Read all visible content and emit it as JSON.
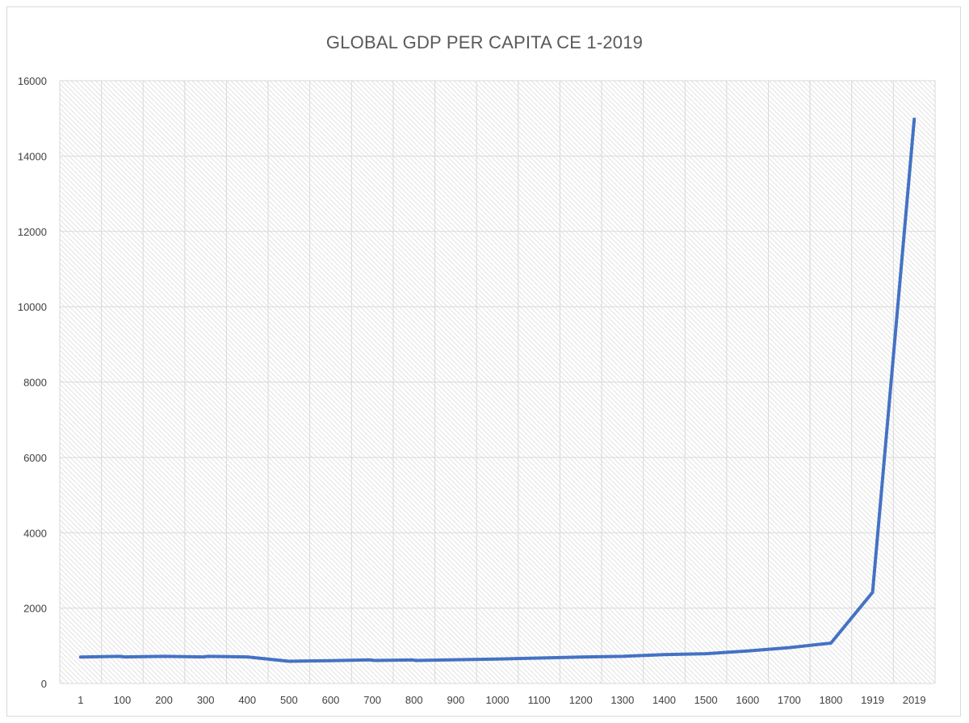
{
  "chart_data": {
    "type": "line",
    "title": "GLOBAL GDP PER CAPITA CE 1-2019",
    "xlabel": "",
    "ylabel": "",
    "categories": [
      "1",
      "100",
      "200",
      "300",
      "400",
      "500",
      "600",
      "700",
      "800",
      "900",
      "1000",
      "1100",
      "1200",
      "1300",
      "1400",
      "1500",
      "1600",
      "1700",
      "1800",
      "1919",
      "2019"
    ],
    "series": [
      {
        "values": [
          [
            0.0,
            700
          ],
          [
            0.95,
            720
          ],
          [
            1.05,
            705
          ],
          [
            2.0,
            720
          ],
          [
            2.95,
            705
          ],
          [
            3.05,
            720
          ],
          [
            4.0,
            705
          ],
          [
            5.0,
            590
          ],
          [
            6.0,
            605
          ],
          [
            6.95,
            625
          ],
          [
            7.05,
            610
          ],
          [
            7.95,
            625
          ],
          [
            8.05,
            610
          ],
          [
            9.0,
            630
          ],
          [
            10.0,
            650
          ],
          [
            11.0,
            675
          ],
          [
            12.0,
            700
          ],
          [
            13.0,
            720
          ],
          [
            14.0,
            765
          ],
          [
            15.0,
            790
          ],
          [
            16.0,
            860
          ],
          [
            17.0,
            950
          ],
          [
            18.0,
            1070
          ],
          [
            19.0,
            2420
          ],
          [
            20.0,
            14980
          ]
        ],
        "color": "#4472c4"
      }
    ],
    "ylim": [
      0,
      16000
    ],
    "yticks": [
      0,
      2000,
      4000,
      6000,
      8000,
      10000,
      12000,
      14000,
      16000
    ],
    "grid": true,
    "legend": "none",
    "colors": {
      "line": "#4472c4",
      "grid": "#d9d9d9",
      "hatch": "#e0e0e0",
      "text": "#404040",
      "title": "#595959"
    }
  }
}
